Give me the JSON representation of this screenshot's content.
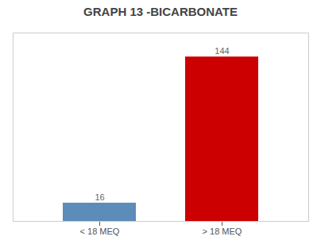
{
  "chart_data": {
    "type": "bar",
    "title": "GRAPH 13 -BICARBONATE",
    "categories": [
      "< 18 MEQ",
      "> 18 MEQ"
    ],
    "values": [
      16,
      144
    ],
    "colors": [
      "#5b8db8",
      "#cc0000"
    ],
    "ylim": [
      0,
      165
    ],
    "grid": false,
    "data_labels": true,
    "tick_labels": "x"
  }
}
